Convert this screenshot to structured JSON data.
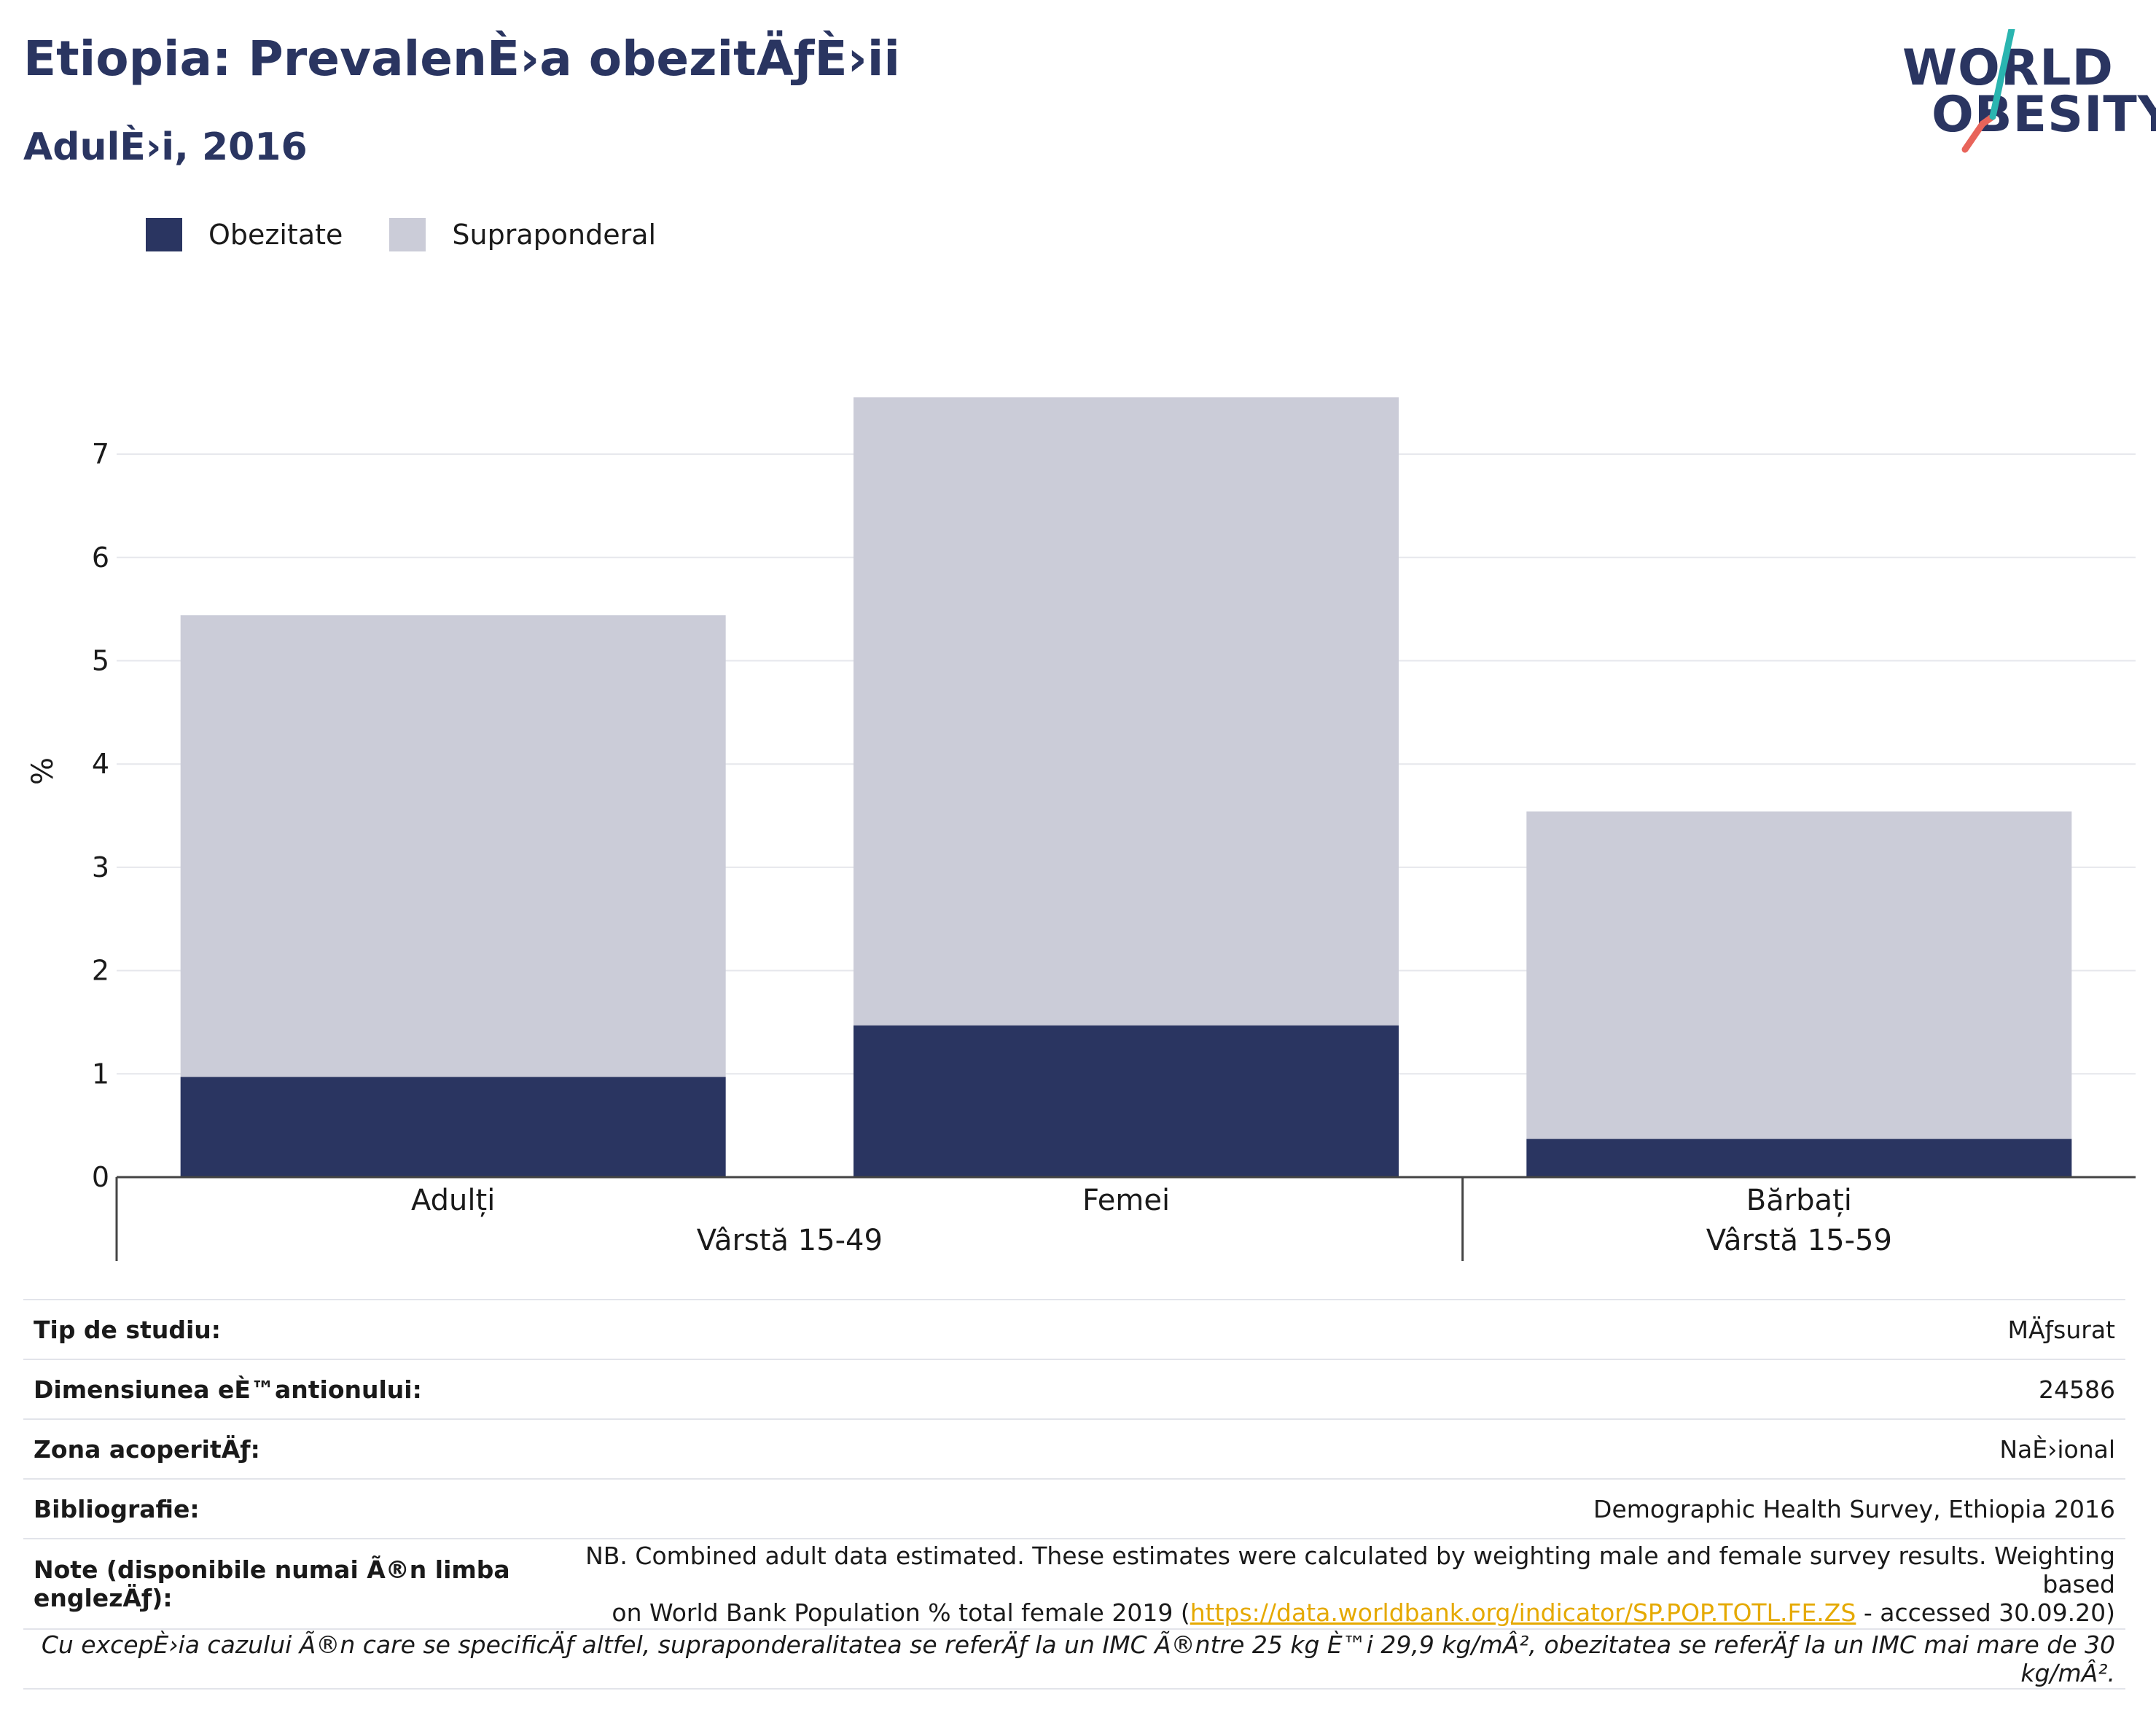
{
  "header": {
    "title": "Etiopia: PrevalenÈ›a obezitÄƒÈ›ii",
    "subtitle": "AdulÈ›i, 2016"
  },
  "logo": {
    "line1": "WORLD",
    "line2": "OBESITY",
    "text_color": "#2a3561",
    "slash_colors": [
      "#2ab5b0",
      "#e8645a"
    ]
  },
  "legend": [
    {
      "label": "Obezitate",
      "color": "#2a3561"
    },
    {
      "label": "Supraponderal",
      "color": "#cbccd8"
    }
  ],
  "chart_data": {
    "type": "bar",
    "stacked": true,
    "categories": [
      "Adulți",
      "Femei",
      "Bărbați"
    ],
    "groups": [
      {
        "label": "Vârstă 15-49",
        "categories": [
          "Adulți",
          "Femei"
        ]
      },
      {
        "label": "Vârstă 15-59",
        "categories": [
          "Bărbați"
        ]
      }
    ],
    "series": [
      {
        "name": "Obezitate",
        "values": [
          0.97,
          1.47,
          0.37
        ],
        "color": "#2a3561"
      },
      {
        "name": "Supraponderal",
        "values": [
          4.47,
          6.08,
          3.17
        ],
        "color": "#cbccd8"
      }
    ],
    "ylabel": "%",
    "ylim": [
      0,
      7.8
    ],
    "yticks": [
      0,
      1,
      2,
      3,
      4,
      5,
      6,
      7
    ],
    "grid": true,
    "legend_position": "top-left"
  },
  "info": {
    "rows": [
      {
        "label": "Tip de studiu:",
        "value": "MÄƒsurat"
      },
      {
        "label": "Dimensiunea eÈ™antionului:",
        "value": "24586"
      },
      {
        "label": "Zona acoperitÄƒ:",
        "value": "NaÈ›ional"
      },
      {
        "label": "Bibliografie:",
        "value": "Demographic Health Survey, Ethiopia 2016"
      }
    ],
    "note_label": "Note (disponibile numai Ã®n limba englezÄƒ):",
    "note_text_1": "NB. Combined adult data estimated. These estimates were calculated by weighting male and female survey results. Weighting based",
    "note_text_2": "on World Bank Population % total female 2019 (",
    "note_link": "https://data.worldbank.org/indicator/SP.POP.TOTL.FE.ZS",
    "note_text_3": " - accessed 30.09.20)",
    "footnote": "Cu excepÈ›ia cazului Ã®n care se specificÄƒ altfel, supraponderalitatea se referÄƒ la un IMC Ã®ntre 25 kg È™i 29,9 kg/mÂ², obezitatea se referÄƒ la un IMC mai mare de 30 kg/mÂ²."
  }
}
